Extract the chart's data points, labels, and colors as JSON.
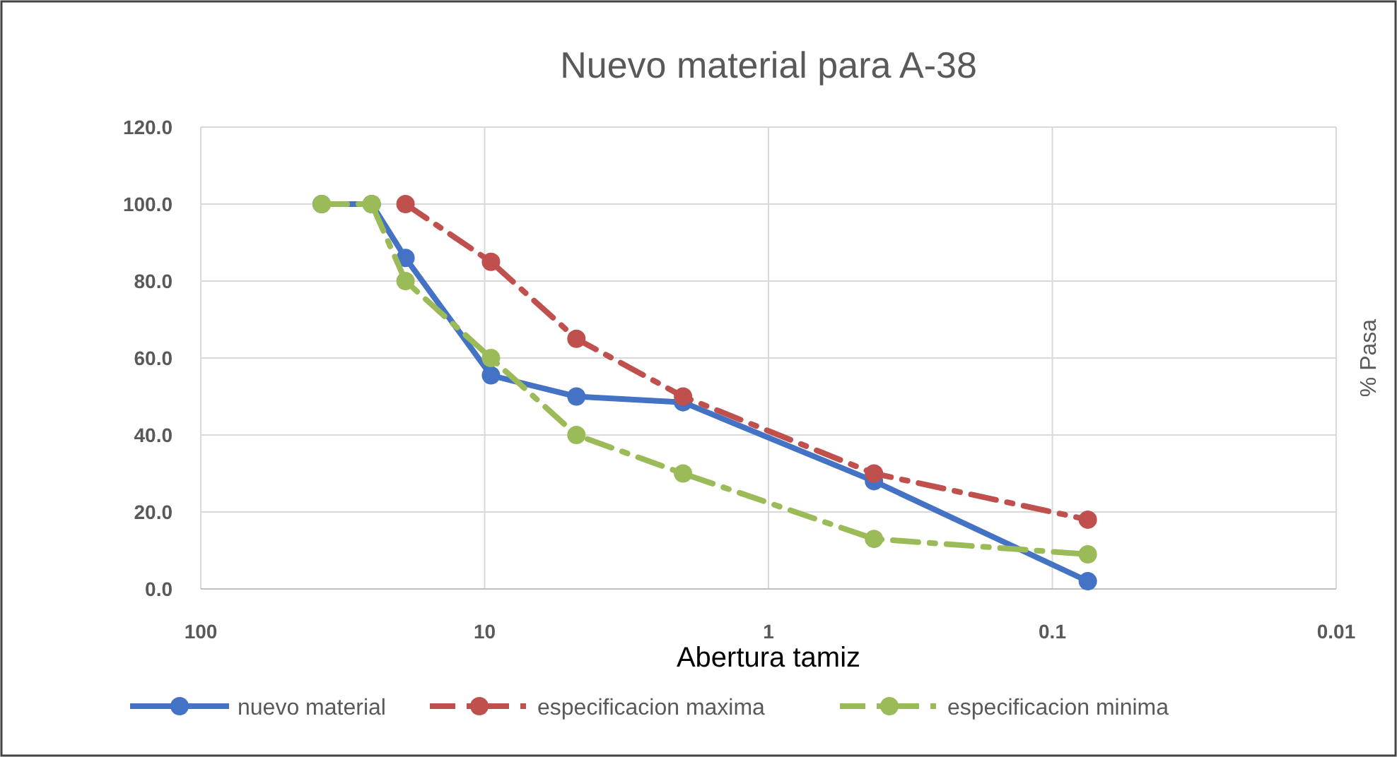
{
  "chart_data": {
    "type": "line",
    "title": "Nuevo material para A-38",
    "xlabel": "Abertura tamiz",
    "ylabel": "% Pasa",
    "log": "x",
    "grid": true,
    "legend": "bottom",
    "marker": "circle",
    "xlim": [
      100,
      0.01
    ],
    "xticks": [
      100,
      10,
      1,
      0.1,
      0.01
    ],
    "ylim": [
      0,
      120
    ],
    "yticks": [
      {
        "value": 0,
        "label": "0.0"
      },
      {
        "value": 20,
        "label": "20.0"
      },
      {
        "value": 40,
        "label": "40.0"
      },
      {
        "value": 60,
        "label": "60.0"
      },
      {
        "value": 80,
        "label": "80.0"
      },
      {
        "value": 100,
        "label": "100.0"
      },
      {
        "value": 120,
        "label": "120.0"
      }
    ],
    "series": [
      {
        "name": "nuevo material",
        "color": "#4472c4",
        "line_style": "solid",
        "x": [
          37.5,
          25,
          19,
          9.5,
          4.75,
          2,
          0.425,
          0.075
        ],
        "values": [
          100,
          100,
          86,
          55.5,
          50,
          48.5,
          28,
          2
        ]
      },
      {
        "name": "especificacion maxima",
        "color": "#c0504d",
        "line_style": "dashed",
        "x": [
          19,
          9.5,
          4.75,
          2,
          0.425,
          0.075
        ],
        "values": [
          100,
          85,
          65,
          50,
          30,
          18
        ]
      },
      {
        "name": "especificacion minima",
        "color": "#9bbb59",
        "line_style": "dashed",
        "x": [
          37.5,
          25,
          19,
          9.5,
          4.75,
          2,
          0.425,
          0.075
        ],
        "values": [
          100,
          100,
          80,
          60,
          40,
          30,
          13,
          9
        ]
      }
    ]
  }
}
